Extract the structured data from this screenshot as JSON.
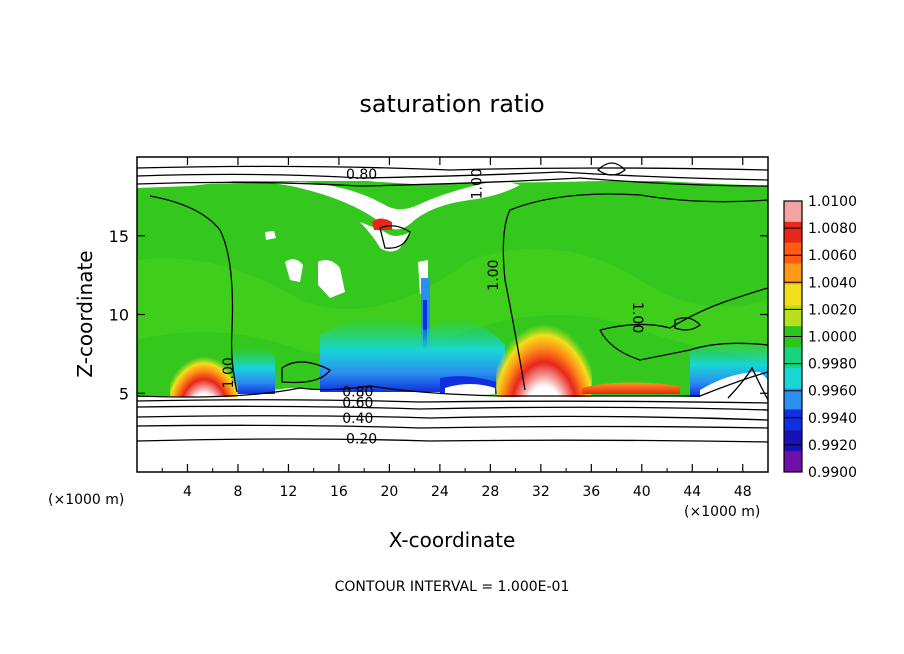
{
  "chart_data": {
    "type": "heatmap",
    "title": "saturation ratio",
    "xlabel": "X-coordinate",
    "ylabel": "Z-coordinate",
    "x_unit_left": "(×1000 m)",
    "x_unit_right": "(×1000 m)",
    "xlim": [
      0,
      50
    ],
    "ylim": [
      0,
      20
    ],
    "x_ticks": [
      "4",
      "8",
      "12",
      "16",
      "20",
      "24",
      "28",
      "32",
      "36",
      "40",
      "44",
      "48"
    ],
    "y_ticks": [
      "5",
      "10",
      "15"
    ],
    "footer": "CONTOUR INTERVAL = 1.000E-01",
    "colorbar": {
      "labels": [
        "1.0100",
        "1.0080",
        "1.0060",
        "1.0040",
        "1.0020",
        "1.0000",
        "0.9980",
        "0.9960",
        "0.9940",
        "0.9920",
        "0.9900"
      ],
      "colors": [
        "#f4a3a3",
        "#e8261a",
        "#ff5b13",
        "#ff9a18",
        "#f2df1c",
        "#b8e01c",
        "#2fc61c",
        "#19d37f",
        "#18d6d6",
        "#2b8ff0",
        "#1030e0",
        "#1a10b8",
        "#7010a8"
      ]
    },
    "contour_labels": [
      {
        "text": "0.80",
        "x": 17.8,
        "y": 18.6
      },
      {
        "text": "1.00",
        "x": 27.3,
        "y": 18.3
      },
      {
        "text": "1.00",
        "x": 28.6,
        "y": 12.5
      },
      {
        "text": "1.00",
        "x": 39.3,
        "y": 9.8
      },
      {
        "text": "1.00",
        "x": 7.6,
        "y": 6.3
      },
      {
        "text": "0.80",
        "x": 17.5,
        "y": 4.8
      },
      {
        "text": "0.60",
        "x": 17.5,
        "y": 4.1
      },
      {
        "text": "0.40",
        "x": 17.5,
        "y": 3.1
      },
      {
        "text": "0.20",
        "x": 17.8,
        "y": 1.8
      }
    ]
  }
}
